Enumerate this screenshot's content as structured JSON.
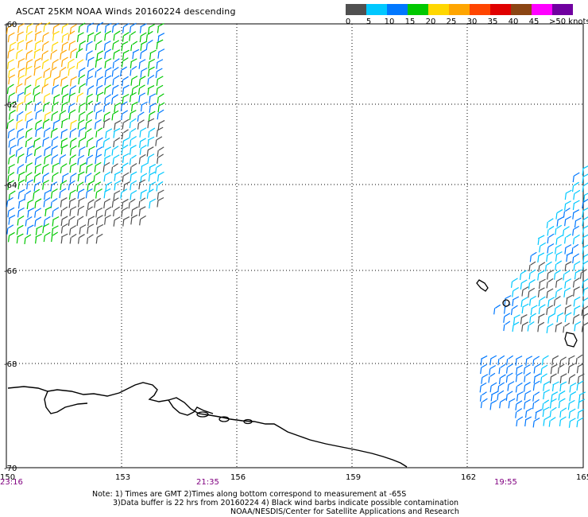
{
  "title": "ASCAT 25KM NOAA Winds 20160224 descending",
  "legend": {
    "bins": [
      {
        "label": "0",
        "color": "#505050"
      },
      {
        "label": "5",
        "color": "#00c8ff"
      },
      {
        "label": "10",
        "color": "#0078ff"
      },
      {
        "label": "15",
        "color": "#00c800"
      },
      {
        "label": "20",
        "color": "#ffd700"
      },
      {
        "label": "25",
        "color": "#ffa500"
      },
      {
        "label": "30",
        "color": "#ff4500"
      },
      {
        "label": "35",
        "color": "#e00000"
      },
      {
        "label": "40",
        "color": "#8b4513"
      },
      {
        "label": "45",
        "color": "#ff00ff"
      },
      {
        "label": ">50 knots",
        "color": "#7000a0"
      }
    ]
  },
  "map": {
    "lon_range": [
      150,
      165
    ],
    "lat_range": [
      -60,
      -70
    ],
    "lat_ticks": [
      "-60",
      "-62",
      "-64",
      "-66",
      "-68",
      "-70"
    ],
    "lon_ticks": [
      "150",
      "153",
      "156",
      "159",
      "162",
      "165"
    ],
    "time_labels": [
      "23:16",
      "21:35",
      "19:55"
    ]
  },
  "notes": {
    "line1": "Note: 1) Times are GMT 2)Times along bottom correspond to measurement at -65S",
    "line2": "3)Data buffer is 22 hrs from 20160224 4) Black wind barbs indicate possible contamination",
    "line3": "NOAA/NESDIS/Center for Satellite Applications and Research"
  }
}
